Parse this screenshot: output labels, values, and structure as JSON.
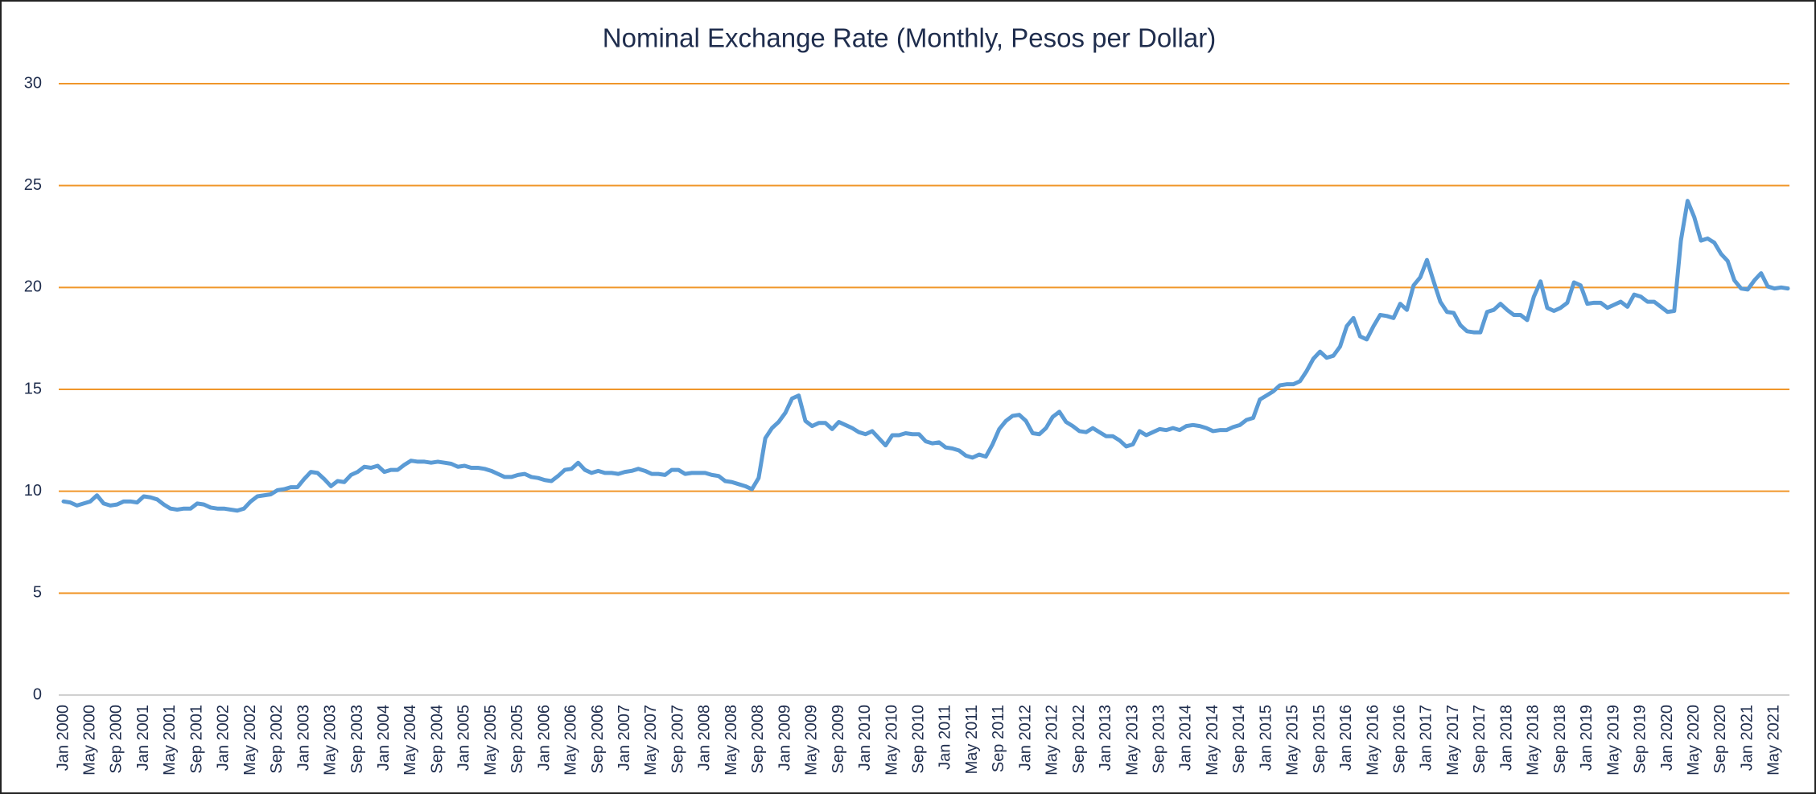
{
  "chart_data": {
    "type": "line",
    "title": "Nominal Exchange Rate (Monthly, Pesos per Dollar)",
    "categories": [
      "Jan 2000",
      null,
      null,
      null,
      "May 2000",
      null,
      null,
      null,
      "Sep 2000",
      null,
      null,
      null,
      "Jan 2001",
      null,
      null,
      null,
      "May 2001",
      null,
      null,
      null,
      "Sep 2001",
      null,
      null,
      null,
      "Jan 2002",
      null,
      null,
      null,
      "May 2002",
      null,
      null,
      null,
      "Sep 2002",
      null,
      null,
      null,
      "Jan 2003",
      null,
      null,
      null,
      "May 2003",
      null,
      null,
      null,
      "Sep 2003",
      null,
      null,
      null,
      "Jan 2004",
      null,
      null,
      null,
      "May 2004",
      null,
      null,
      null,
      "Sep 2004",
      null,
      null,
      null,
      "Jan 2005",
      null,
      null,
      null,
      "May 2005",
      null,
      null,
      null,
      "Sep 2005",
      null,
      null,
      null,
      "Jan 2006",
      null,
      null,
      null,
      "May 2006",
      null,
      null,
      null,
      "Sep 2006",
      null,
      null,
      null,
      "Jan 2007",
      null,
      null,
      null,
      "May 2007",
      null,
      null,
      null,
      "Sep 2007",
      null,
      null,
      null,
      "Jan 2008",
      null,
      null,
      null,
      "May 2008",
      null,
      null,
      null,
      "Sep 2008",
      null,
      null,
      null,
      "Jan 2009",
      null,
      null,
      null,
      "May 2009",
      null,
      null,
      null,
      "Sep 2009",
      null,
      null,
      null,
      "Jan 2010",
      null,
      null,
      null,
      "May 2010",
      null,
      null,
      null,
      "Sep 2010",
      null,
      null,
      null,
      "Jan 2011",
      null,
      null,
      null,
      "May 2011",
      null,
      null,
      null,
      "Sep 2011",
      null,
      null,
      null,
      "Jan 2012",
      null,
      null,
      null,
      "May 2012",
      null,
      null,
      null,
      "Sep 2012",
      null,
      null,
      null,
      "Jan 2013",
      null,
      null,
      null,
      "May 2013",
      null,
      null,
      null,
      "Sep 2013",
      null,
      null,
      null,
      "Jan 2014",
      null,
      null,
      null,
      "May 2014",
      null,
      null,
      null,
      "Sep 2014",
      null,
      null,
      null,
      "Jan 2015",
      null,
      null,
      null,
      "May 2015",
      null,
      null,
      null,
      "Sep 2015",
      null,
      null,
      null,
      "Jan 2016",
      null,
      null,
      null,
      "May 2016",
      null,
      null,
      null,
      "Sep 2016",
      null,
      null,
      null,
      "Jan 2017",
      null,
      null,
      null,
      "May 2017",
      null,
      null,
      null,
      "Sep 2017",
      null,
      null,
      null,
      "Jan 2018",
      null,
      null,
      null,
      "May 2018",
      null,
      null,
      null,
      "Sep 2018",
      null,
      null,
      null,
      "Jan 2019",
      null,
      null,
      null,
      "May 2019",
      null,
      null,
      null,
      "Sep 2019",
      null,
      null,
      null,
      "Jan 2020",
      null,
      null,
      null,
      "May 2020",
      null,
      null,
      null,
      "Sep 2020",
      null,
      null,
      null,
      "Jan 2021",
      null,
      null,
      null,
      "May 2021",
      null,
      null
    ],
    "values": [
      9.5,
      9.45,
      9.3,
      9.4,
      9.5,
      9.8,
      9.4,
      9.3,
      9.35,
      9.5,
      9.5,
      9.45,
      9.75,
      9.7,
      9.6,
      9.35,
      9.15,
      9.1,
      9.15,
      9.15,
      9.4,
      9.35,
      9.2,
      9.15,
      9.15,
      9.1,
      9.05,
      9.15,
      9.5,
      9.75,
      9.8,
      9.85,
      10.05,
      10.1,
      10.2,
      10.2,
      10.6,
      10.95,
      10.9,
      10.6,
      10.25,
      10.5,
      10.45,
      10.8,
      10.95,
      11.2,
      11.15,
      11.25,
      10.95,
      11.05,
      11.05,
      11.3,
      11.5,
      11.45,
      11.45,
      11.4,
      11.45,
      11.4,
      11.35,
      11.2,
      11.25,
      11.15,
      11.15,
      11.1,
      11.0,
      10.85,
      10.7,
      10.7,
      10.8,
      10.85,
      10.7,
      10.65,
      10.55,
      10.5,
      10.75,
      11.05,
      11.1,
      11.4,
      11.05,
      10.9,
      11.0,
      10.9,
      10.9,
      10.85,
      10.95,
      11.0,
      11.1,
      11.0,
      10.85,
      10.85,
      10.8,
      11.05,
      11.05,
      10.85,
      10.9,
      10.9,
      10.9,
      10.8,
      10.75,
      10.5,
      10.45,
      10.35,
      10.25,
      10.1,
      10.65,
      12.6,
      13.1,
      13.4,
      13.85,
      14.55,
      14.7,
      13.45,
      13.2,
      13.35,
      13.35,
      13.05,
      13.4,
      13.25,
      13.1,
      12.9,
      12.8,
      12.95,
      12.6,
      12.25,
      12.75,
      12.75,
      12.85,
      12.8,
      12.8,
      12.45,
      12.35,
      12.4,
      12.15,
      12.1,
      12.0,
      11.75,
      11.65,
      11.8,
      11.7,
      12.3,
      13.05,
      13.45,
      13.7,
      13.75,
      13.45,
      12.85,
      12.8,
      13.1,
      13.65,
      13.9,
      13.4,
      13.2,
      12.95,
      12.9,
      13.1,
      12.9,
      12.7,
      12.7,
      12.5,
      12.2,
      12.3,
      12.95,
      12.75,
      12.9,
      13.05,
      13.0,
      13.1,
      13.0,
      13.2,
      13.25,
      13.2,
      13.1,
      12.95,
      13.0,
      13.0,
      13.15,
      13.25,
      13.5,
      13.6,
      14.5,
      14.7,
      14.9,
      15.2,
      15.25,
      15.25,
      15.4,
      15.9,
      16.5,
      16.85,
      16.55,
      16.65,
      17.1,
      18.1,
      18.5,
      17.6,
      17.45,
      18.1,
      18.65,
      18.6,
      18.5,
      19.2,
      18.9,
      20.1,
      20.5,
      21.35,
      20.3,
      19.3,
      18.8,
      18.75,
      18.15,
      17.85,
      17.8,
      17.8,
      18.8,
      18.9,
      19.2,
      18.9,
      18.65,
      18.65,
      18.4,
      19.55,
      20.3,
      19.0,
      18.85,
      19.0,
      19.25,
      20.25,
      20.1,
      19.2,
      19.25,
      19.25,
      19.0,
      19.15,
      19.3,
      19.05,
      19.65,
      19.55,
      19.3,
      19.3,
      19.05,
      18.8,
      18.85,
      22.3,
      24.25,
      23.45,
      22.3,
      22.4,
      22.2,
      21.65,
      21.3,
      20.35,
      19.95,
      19.9,
      20.35,
      20.7,
      20.05,
      19.95,
      20.0,
      19.95
    ],
    "color": "#5b9bd5",
    "ylim": [
      0,
      30
    ],
    "yticks": [
      0,
      5,
      10,
      15,
      20,
      25,
      30
    ],
    "grid": true,
    "grid_color": "#f0962a"
  }
}
